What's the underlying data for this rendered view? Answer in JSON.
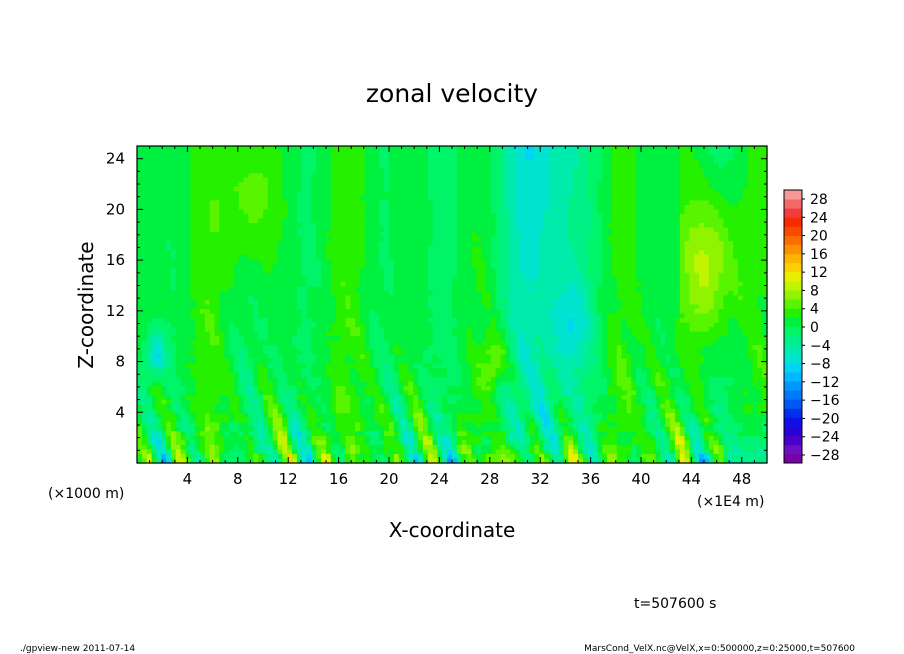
{
  "chart_data": {
    "type": "heatmap",
    "title": "zonal velocity",
    "xlabel": "X-coordinate",
    "ylabel": "Z-coordinate",
    "x_unit_left": "(×1000 m)",
    "x_unit_right": "(×1E4 m)",
    "xlim": [
      0,
      50
    ],
    "ylim": [
      0,
      25
    ],
    "x_ticks": [
      4,
      8,
      12,
      16,
      20,
      24,
      28,
      32,
      36,
      40,
      44,
      48
    ],
    "y_ticks": [
      4,
      8,
      12,
      16,
      20,
      24
    ],
    "colorbar": {
      "labels": [
        "28",
        "24",
        "20",
        "16",
        "12",
        "8",
        "4",
        "0",
        "−4",
        "−8",
        "−12",
        "−16",
        "−20",
        "−24",
        "−28"
      ],
      "levels": [
        -30,
        -28,
        -26,
        -24,
        -22,
        -20,
        -18,
        -16,
        -14,
        -12,
        -10,
        -8,
        -6,
        -4,
        -2,
        0,
        2,
        4,
        6,
        8,
        10,
        12,
        14,
        16,
        18,
        20,
        22,
        24,
        26,
        28,
        30
      ],
      "colors": [
        "#7a00a8",
        "#6a10c0",
        "#4a00c8",
        "#2c00d8",
        "#1010e6",
        "#0030ee",
        "#0058f4",
        "#0078fa",
        "#0098ff",
        "#00b8ff",
        "#00d4f4",
        "#00e4d0",
        "#00ecac",
        "#00f088",
        "#00f468",
        "#00f040",
        "#24f000",
        "#58f400",
        "#90f400",
        "#c0f400",
        "#e8f000",
        "#fad200",
        "#fcb400",
        "#fc9000",
        "#fc6c00",
        "#fa4a00",
        "#f82a00",
        "#f43c3c",
        "#f46868",
        "#f49898"
      ]
    },
    "time_label": "t=507600 s"
  },
  "footer": {
    "left": "./gpview-new  2011-07-14",
    "right": "MarsCond_VelX.nc@VelX,x=0:500000,z=0:25000,t=507600"
  }
}
